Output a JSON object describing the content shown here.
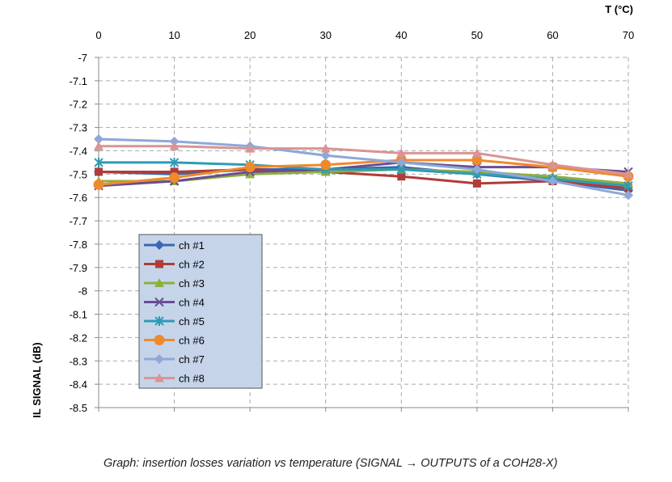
{
  "chart_data": {
    "type": "line",
    "title": "",
    "xlabel": "T (°C)",
    "ylabel": "IL SIGNAL (dB)",
    "x": [
      0,
      10,
      20,
      30,
      40,
      50,
      60,
      70
    ],
    "xlim": [
      0,
      70
    ],
    "ylim": [
      -8.5,
      -7
    ],
    "yticks": [
      -7,
      -7.1,
      -7.2,
      -7.3,
      -7.4,
      -7.5,
      -7.6,
      -7.7,
      -7.8,
      -7.9,
      -8,
      -8.1,
      -8.2,
      -8.3,
      -8.4,
      -8.5
    ],
    "xaxis_position": "top",
    "grid": true,
    "legend_placement": "lower-left",
    "series": [
      {
        "name": "ch #1",
        "color": "#3a67b0",
        "marker": "diamond",
        "values": [
          -7.49,
          -7.5,
          -7.48,
          -7.48,
          -7.47,
          -7.5,
          -7.53,
          -7.57
        ]
      },
      {
        "name": "ch #2",
        "color": "#b03c3a",
        "marker": "square",
        "values": [
          -7.49,
          -7.49,
          -7.48,
          -7.49,
          -7.51,
          -7.54,
          -7.53,
          -7.56
        ]
      },
      {
        "name": "ch #3",
        "color": "#8db03c",
        "marker": "triangle",
        "values": [
          -7.53,
          -7.53,
          -7.5,
          -7.49,
          -7.48,
          -7.49,
          -7.51,
          -7.54
        ]
      },
      {
        "name": "ch #4",
        "color": "#6a4c93",
        "marker": "x",
        "values": [
          -7.55,
          -7.53,
          -7.49,
          -7.48,
          -7.45,
          -7.47,
          -7.47,
          -7.49
        ]
      },
      {
        "name": "ch #5",
        "color": "#2e9bb5",
        "marker": "star",
        "values": [
          -7.45,
          -7.45,
          -7.46,
          -7.48,
          -7.48,
          -7.5,
          -7.52,
          -7.55
        ]
      },
      {
        "name": "ch #6",
        "color": "#ef8a2c",
        "marker": "circle",
        "values": [
          -7.545,
          -7.515,
          -7.47,
          -7.46,
          -7.44,
          -7.44,
          -7.47,
          -7.51
        ]
      },
      {
        "name": "ch #7",
        "color": "#8ea8d8",
        "marker": "diamond",
        "values": [
          -7.35,
          -7.36,
          -7.38,
          -7.42,
          -7.45,
          -7.48,
          -7.53,
          -7.59
        ]
      },
      {
        "name": "ch #8",
        "color": "#d99494",
        "marker": "triangle",
        "values": [
          -7.38,
          -7.38,
          -7.39,
          -7.39,
          -7.41,
          -7.41,
          -7.46,
          -7.5
        ]
      }
    ]
  },
  "caption": "Graph: insertion losses variation vs temperature (SIGNAL → OUTPUTS of a COH28-X)"
}
